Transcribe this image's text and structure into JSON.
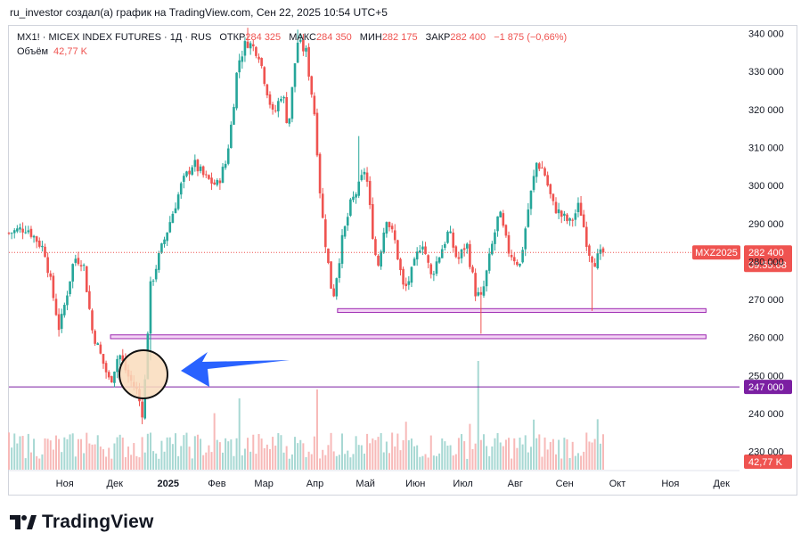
{
  "header": {
    "author_line": "ru_investor создал(а) график на TradingView.com, Сен 22, 2025 10:54 UTC+5"
  },
  "legend": {
    "symbol_line": "MX1! · MICEX INDEX FUTURES · 1Д · RUS",
    "open_label": "ОТКР",
    "open_value": "284 325",
    "high_label": "МАКС",
    "high_value": "284 350",
    "low_label": "МИН",
    "low_value": "282 175",
    "close_label": "ЗАКР",
    "close_value": "282 400",
    "change_value": "−1 875 (−0,66%)",
    "volume_label": "Объём",
    "volume_value": "42,77 K"
  },
  "colors": {
    "up": "#26a69a",
    "down": "#ef5350",
    "vol_up": "#a7d8d3",
    "vol_down": "#f7b9b8",
    "zone_fill": "#f3d4f5",
    "zone_stroke": "#9c27b0",
    "hline": "#7b1fa2",
    "arrow": "#2962ff",
    "circle_fill": "#f9dcbc",
    "price_dot": "#ef5350"
  },
  "chart_data": {
    "type": "candlestick",
    "title": "MX1! · MICEX INDEX FUTURES · 1Д · RUS",
    "timeframe": "1D",
    "ylim": [
      225000,
      342000
    ],
    "y_ticks": [
      "340 000",
      "330 000",
      "320 000",
      "310 000",
      "300 000",
      "290 000",
      "280 000",
      "270 000",
      "260 000",
      "250 000",
      "240 000",
      "230 000"
    ],
    "y_tick_values": [
      340000,
      330000,
      320000,
      310000,
      300000,
      290000,
      280000,
      270000,
      260000,
      250000,
      240000,
      230000
    ],
    "x_labels": [
      {
        "text": "Ноя",
        "bold": false,
        "t": 0.094
      },
      {
        "text": "Дек",
        "bold": false,
        "t": 0.178
      },
      {
        "text": "2025",
        "bold": true,
        "t": 0.268
      },
      {
        "text": "Фев",
        "bold": false,
        "t": 0.35
      },
      {
        "text": "Мар",
        "bold": false,
        "t": 0.429
      },
      {
        "text": "Апр",
        "bold": false,
        "t": 0.515
      },
      {
        "text": "Май",
        "bold": false,
        "t": 0.6
      },
      {
        "text": "Июн",
        "bold": false,
        "t": 0.684
      },
      {
        "text": "Июл",
        "bold": false,
        "t": 0.764
      },
      {
        "text": "Авг",
        "bold": false,
        "t": 0.852
      },
      {
        "text": "Сен",
        "bold": false,
        "t": 0.935
      },
      {
        "text": "Окт",
        "bold": false,
        "t": 1.024
      },
      {
        "text": "Ноя",
        "bold": false,
        "t": 1.113
      },
      {
        "text": "Дек",
        "bold": false,
        "t": 1.199
      }
    ],
    "path_knots": [
      [
        0.0,
        287500
      ],
      [
        0.03,
        289000
      ],
      [
        0.06,
        283000
      ],
      [
        0.085,
        262000
      ],
      [
        0.11,
        281000
      ],
      [
        0.125,
        280000
      ],
      [
        0.14,
        262000
      ],
      [
        0.155,
        255000
      ],
      [
        0.17,
        248000
      ],
      [
        0.185,
        256000
      ],
      [
        0.2,
        250000
      ],
      [
        0.215,
        246000
      ],
      [
        0.225,
        240000
      ],
      [
        0.232,
        255000
      ],
      [
        0.236,
        272000
      ],
      [
        0.25,
        280000
      ],
      [
        0.27,
        290000
      ],
      [
        0.29,
        300000
      ],
      [
        0.31,
        306000
      ],
      [
        0.33,
        302000
      ],
      [
        0.35,
        300000
      ],
      [
        0.365,
        306000
      ],
      [
        0.375,
        317000
      ],
      [
        0.385,
        332000
      ],
      [
        0.4,
        338000
      ],
      [
        0.42,
        335000
      ],
      [
        0.43,
        328000
      ],
      [
        0.445,
        318000
      ],
      [
        0.46,
        325000
      ],
      [
        0.47,
        315000
      ],
      [
        0.485,
        338000
      ],
      [
        0.5,
        335000
      ],
      [
        0.515,
        318000
      ],
      [
        0.525,
        295000
      ],
      [
        0.535,
        282000
      ],
      [
        0.545,
        270000
      ],
      [
        0.56,
        285000
      ],
      [
        0.575,
        295000
      ],
      [
        0.59,
        300000
      ],
      [
        0.6,
        305000
      ],
      [
        0.61,
        290000
      ],
      [
        0.62,
        278000
      ],
      [
        0.635,
        292000
      ],
      [
        0.65,
        285000
      ],
      [
        0.665,
        272000
      ],
      [
        0.68,
        278000
      ],
      [
        0.695,
        286000
      ],
      [
        0.71,
        276000
      ],
      [
        0.725,
        282000
      ],
      [
        0.74,
        288000
      ],
      [
        0.755,
        280000
      ],
      [
        0.77,
        285000
      ],
      [
        0.785,
        272000
      ],
      [
        0.795,
        270000
      ],
      [
        0.81,
        282000
      ],
      [
        0.825,
        293000
      ],
      [
        0.84,
        283000
      ],
      [
        0.86,
        279000
      ],
      [
        0.875,
        295000
      ],
      [
        0.888,
        306000
      ],
      [
        0.9,
        304000
      ],
      [
        0.915,
        295000
      ],
      [
        0.93,
        292000
      ],
      [
        0.945,
        290000
      ],
      [
        0.96,
        295000
      ],
      [
        0.975,
        283000
      ],
      [
        0.985,
        280000
      ],
      [
        1.0,
        282400
      ]
    ],
    "last_price": 282400,
    "last_symbol": "MXZ2025",
    "last_price_label": "282 400",
    "countdown_label": "09:55:08",
    "volume_last_label": "42,77 K",
    "zones": [
      {
        "from_t": 0.553,
        "to_t": 1.173,
        "low": 266600,
        "high": 267600
      },
      {
        "from_t": 0.171,
        "to_t": 1.173,
        "low": 259700,
        "high": 260700
      }
    ],
    "hline": {
      "value": 247000,
      "label": "247 000"
    }
  }
}
